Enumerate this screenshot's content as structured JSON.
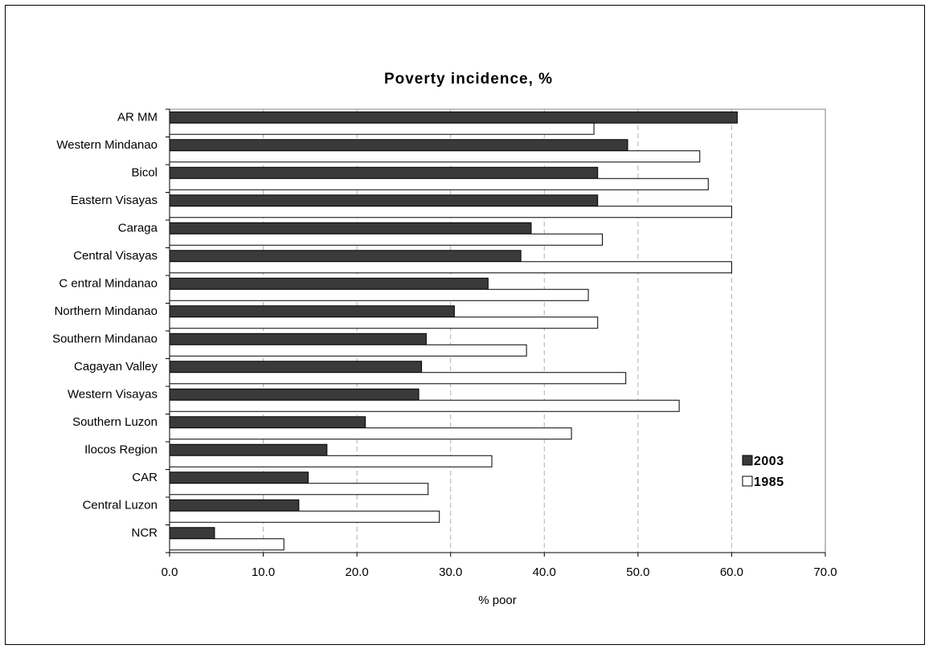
{
  "chart_data": {
    "type": "bar",
    "orientation": "horizontal",
    "title": "Poverty incidence, %",
    "xlabel": "% poor",
    "ylabel": "",
    "xlim": [
      0,
      70
    ],
    "x_ticks": [
      "0.0",
      "10.0",
      "20.0",
      "30.0",
      "40.0",
      "50.0",
      "60.0",
      "70.0"
    ],
    "grid": "vertical dashed",
    "legend_position": "right",
    "categories": [
      "AR MM",
      "Western Mindanao",
      "Bicol",
      "Eastern Visayas",
      "Caraga",
      "Central Visayas",
      "C entral Mindanao",
      "Northern Mindanao",
      "Southern Mindanao",
      "Cagayan Valley",
      "Western Visayas",
      "Southern Luzon",
      "Ilocos Region",
      "CAR",
      "Central Luzon",
      "NCR"
    ],
    "series": [
      {
        "name": "2003",
        "color": "#3a3a3a",
        "values": [
          60.6,
          48.9,
          45.7,
          45.7,
          38.6,
          37.5,
          34.0,
          30.4,
          27.4,
          26.9,
          26.6,
          20.9,
          16.8,
          14.8,
          13.8,
          4.8
        ]
      },
      {
        "name": "1985",
        "color": "#ffffff",
        "values": [
          45.3,
          56.6,
          57.5,
          60.0,
          46.2,
          60.0,
          44.7,
          45.7,
          38.1,
          48.7,
          54.4,
          42.9,
          34.4,
          27.6,
          28.8,
          12.2
        ]
      }
    ]
  }
}
